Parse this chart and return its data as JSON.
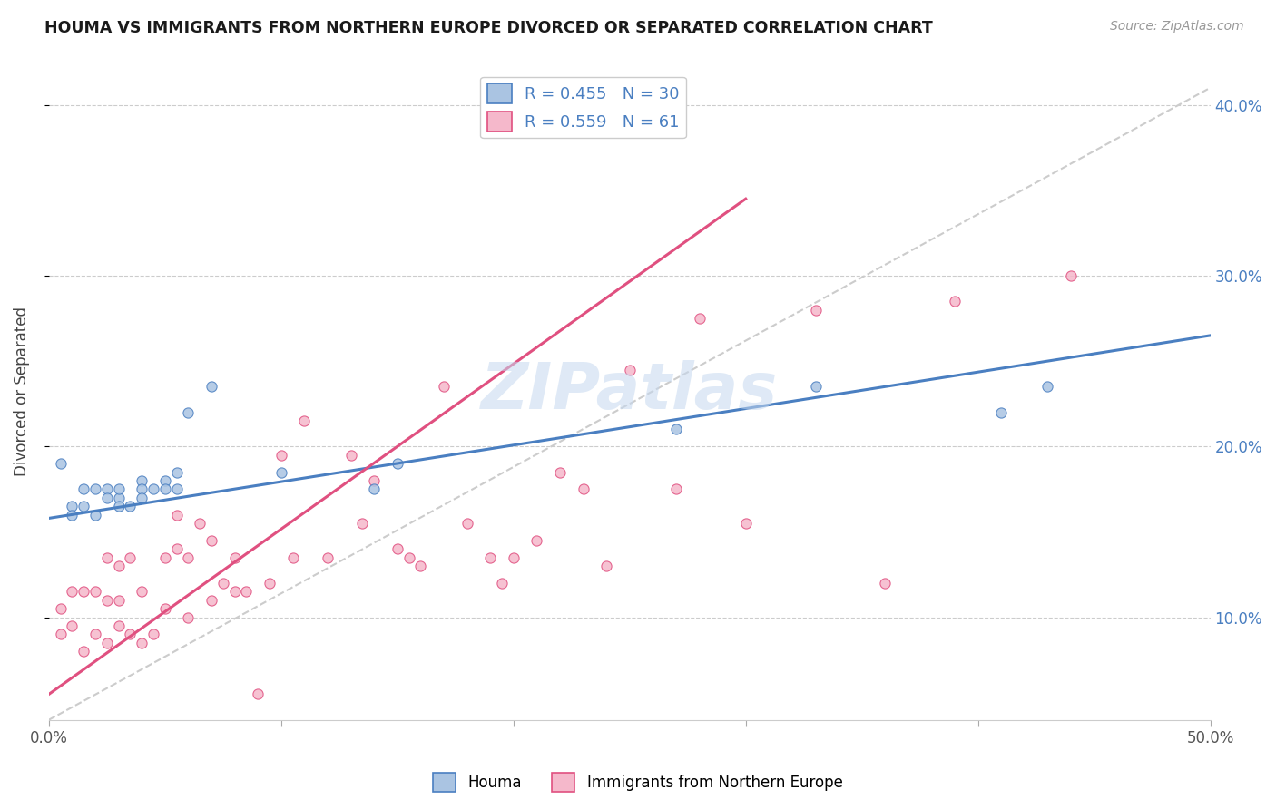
{
  "title": "HOUMA VS IMMIGRANTS FROM NORTHERN EUROPE DIVORCED OR SEPARATED CORRELATION CHART",
  "source_text": "Source: ZipAtlas.com",
  "ylabel": "Divorced or Separated",
  "xmin": 0.0,
  "xmax": 0.5,
  "ymin": 0.04,
  "ymax": 0.425,
  "ytick_positions": [
    0.1,
    0.2,
    0.3,
    0.4
  ],
  "ytick_labels": [
    "10.0%",
    "20.0%",
    "30.0%",
    "40.0%"
  ],
  "houma_color": "#aac4e2",
  "immigrants_color": "#f5b8cb",
  "houma_line_color": "#4a7fc1",
  "immigrants_line_color": "#e05080",
  "dashed_line_color": "#cccccc",
  "R_houma": 0.455,
  "N_houma": 30,
  "R_immigrants": 0.559,
  "N_immigrants": 61,
  "legend_label_houma": "Houma",
  "legend_label_immigrants": "Immigrants from Northern Europe",
  "watermark": "ZIPatlas",
  "houma_line_x": [
    0.0,
    0.5
  ],
  "houma_line_y": [
    0.158,
    0.265
  ],
  "immigrants_line_x": [
    0.0,
    0.3
  ],
  "immigrants_line_y": [
    0.055,
    0.345
  ],
  "dashed_line_x": [
    0.0,
    0.5
  ],
  "dashed_line_y": [
    0.04,
    0.41
  ],
  "houma_scatter_x": [
    0.005,
    0.01,
    0.01,
    0.015,
    0.015,
    0.02,
    0.02,
    0.025,
    0.025,
    0.03,
    0.03,
    0.03,
    0.035,
    0.04,
    0.04,
    0.04,
    0.045,
    0.05,
    0.05,
    0.055,
    0.055,
    0.06,
    0.07,
    0.1,
    0.14,
    0.15,
    0.27,
    0.33,
    0.41,
    0.43
  ],
  "houma_scatter_y": [
    0.19,
    0.165,
    0.16,
    0.175,
    0.165,
    0.175,
    0.16,
    0.175,
    0.17,
    0.17,
    0.165,
    0.175,
    0.165,
    0.18,
    0.175,
    0.17,
    0.175,
    0.18,
    0.175,
    0.185,
    0.175,
    0.22,
    0.235,
    0.185,
    0.175,
    0.19,
    0.21,
    0.235,
    0.22,
    0.235
  ],
  "immigrants_scatter_x": [
    0.005,
    0.005,
    0.01,
    0.01,
    0.015,
    0.015,
    0.02,
    0.02,
    0.025,
    0.025,
    0.025,
    0.03,
    0.03,
    0.03,
    0.035,
    0.035,
    0.04,
    0.04,
    0.045,
    0.05,
    0.05,
    0.055,
    0.055,
    0.06,
    0.06,
    0.065,
    0.07,
    0.07,
    0.075,
    0.08,
    0.08,
    0.085,
    0.09,
    0.095,
    0.1,
    0.105,
    0.11,
    0.12,
    0.13,
    0.135,
    0.14,
    0.15,
    0.155,
    0.16,
    0.17,
    0.18,
    0.19,
    0.195,
    0.2,
    0.21,
    0.22,
    0.23,
    0.24,
    0.25,
    0.27,
    0.28,
    0.3,
    0.33,
    0.36,
    0.39,
    0.44
  ],
  "immigrants_scatter_y": [
    0.09,
    0.105,
    0.095,
    0.115,
    0.08,
    0.115,
    0.09,
    0.115,
    0.085,
    0.11,
    0.135,
    0.095,
    0.11,
    0.13,
    0.09,
    0.135,
    0.085,
    0.115,
    0.09,
    0.135,
    0.105,
    0.16,
    0.14,
    0.1,
    0.135,
    0.155,
    0.11,
    0.145,
    0.12,
    0.115,
    0.135,
    0.115,
    0.055,
    0.12,
    0.195,
    0.135,
    0.215,
    0.135,
    0.195,
    0.155,
    0.18,
    0.14,
    0.135,
    0.13,
    0.235,
    0.155,
    0.135,
    0.12,
    0.135,
    0.145,
    0.185,
    0.175,
    0.13,
    0.245,
    0.175,
    0.275,
    0.155,
    0.28,
    0.12,
    0.285,
    0.3
  ]
}
